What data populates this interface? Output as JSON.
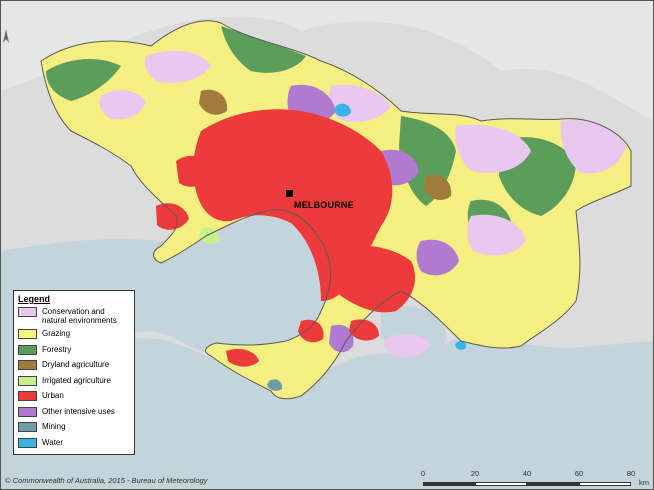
{
  "map": {
    "city_label": "MELBOURNE",
    "copyright": "© Commonwealth of Australia, 2015 - Bureau of Meteorology"
  },
  "legend": {
    "title": "Legend",
    "items": [
      {
        "label": "Conservation and natural environments",
        "color": "#e8c8ee"
      },
      {
        "label": "Grazing",
        "color": "#f7f57b"
      },
      {
        "label": "Forestry",
        "color": "#5c9d5c"
      },
      {
        "label": "Dryland agriculture",
        "color": "#a07b3b"
      },
      {
        "label": "Irrigated agriculture",
        "color": "#c6f08e"
      },
      {
        "label": "Urban",
        "color": "#ee3a3a"
      },
      {
        "label": "Other intensive uses",
        "color": "#b07ad0"
      },
      {
        "label": "Mining",
        "color": "#6f9aa8"
      },
      {
        "label": "Water",
        "color": "#3ab4e6"
      }
    ]
  },
  "scale": {
    "ticks": [
      "0",
      "20",
      "40",
      "60",
      "80"
    ],
    "unit": "km"
  },
  "colors": {
    "sea": "#bfd1d8",
    "terrain": "#dadada"
  }
}
